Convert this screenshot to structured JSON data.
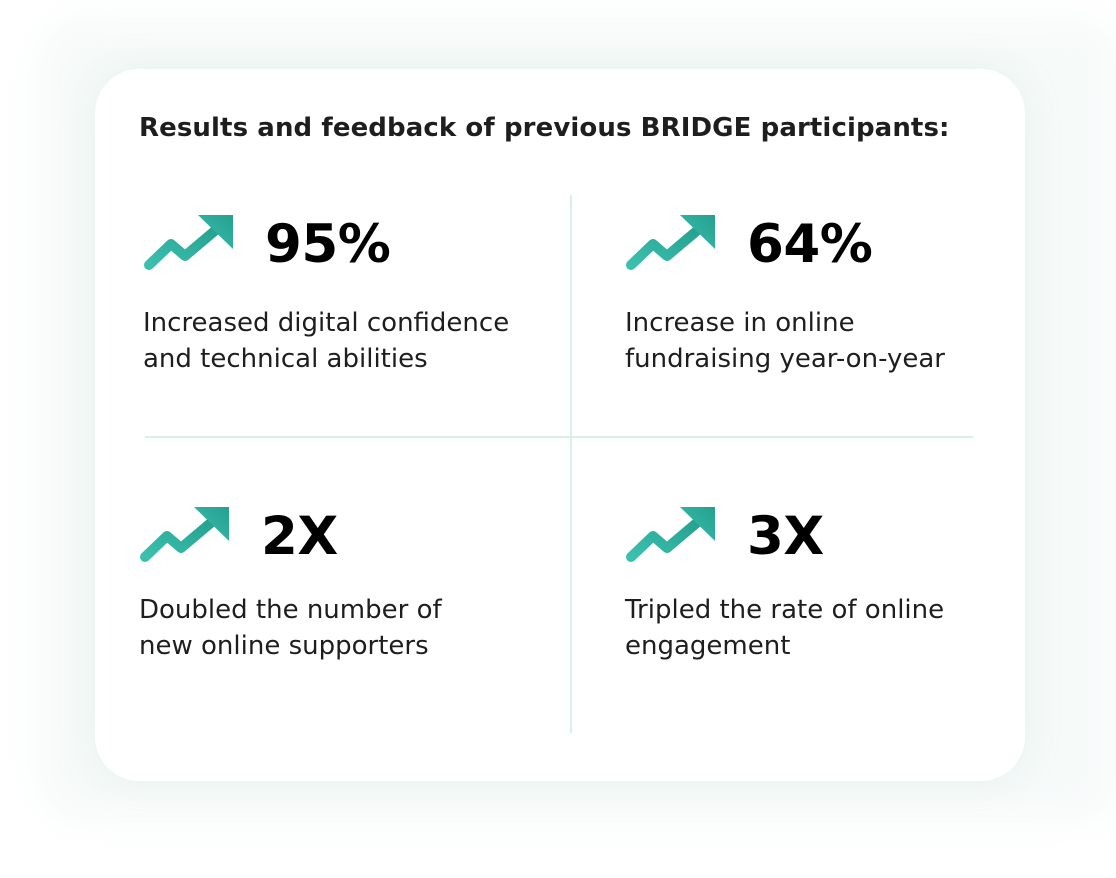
{
  "heading": "Results and feedback of previous BRIDGE participants:",
  "accent_color": "#2fae9c",
  "icon": "trending-up-arrow-icon",
  "stats": [
    {
      "value": "95%",
      "description": "Increased digital confidence\nand technical abilities"
    },
    {
      "value": "64%",
      "description": "Increase in online\nfundraising year-on-year"
    },
    {
      "value": "2X",
      "description": "Doubled the number of\nnew online supporters"
    },
    {
      "value": "3X",
      "description": "Tripled the rate of online\nengagement"
    }
  ]
}
